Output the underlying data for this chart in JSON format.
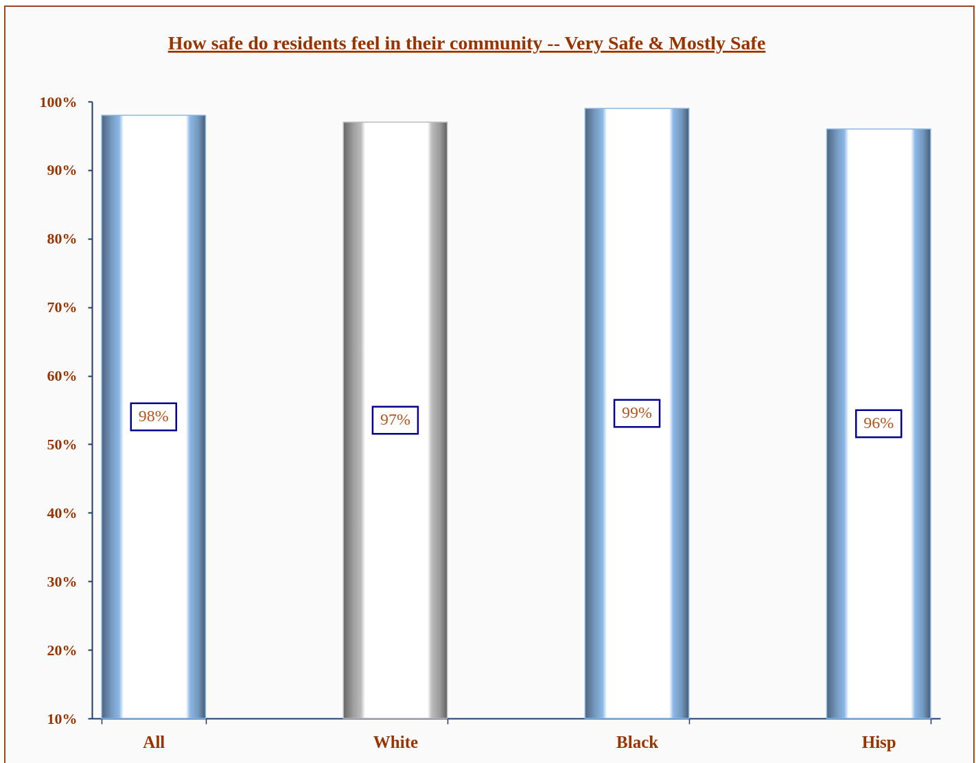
{
  "chart_data": {
    "type": "bar",
    "title": "How safe do residents feel in their community -- Very Safe & Mostly Safe",
    "categories": [
      "All",
      "White",
      "Black",
      "Hisp"
    ],
    "values": [
      98,
      97,
      99,
      96
    ],
    "colors": [
      "#8cb8e6",
      "#bcbcbc",
      "#8cb8e6",
      "#8cb8e6"
    ],
    "value_labels": [
      "98%",
      "97%",
      "99%",
      "96%"
    ],
    "ylim": [
      10,
      100
    ],
    "yticks": [
      {
        "value": 10,
        "label": "10%"
      },
      {
        "value": 20,
        "label": "20%"
      },
      {
        "value": 30,
        "label": "30%"
      },
      {
        "value": 40,
        "label": "40%"
      },
      {
        "value": 50,
        "label": "50%"
      },
      {
        "value": 60,
        "label": "60%"
      },
      {
        "value": 70,
        "label": "70%"
      },
      {
        "value": 80,
        "label": "80%"
      },
      {
        "value": 90,
        "label": "90%"
      },
      {
        "value": 100,
        "label": "100%"
      }
    ]
  }
}
